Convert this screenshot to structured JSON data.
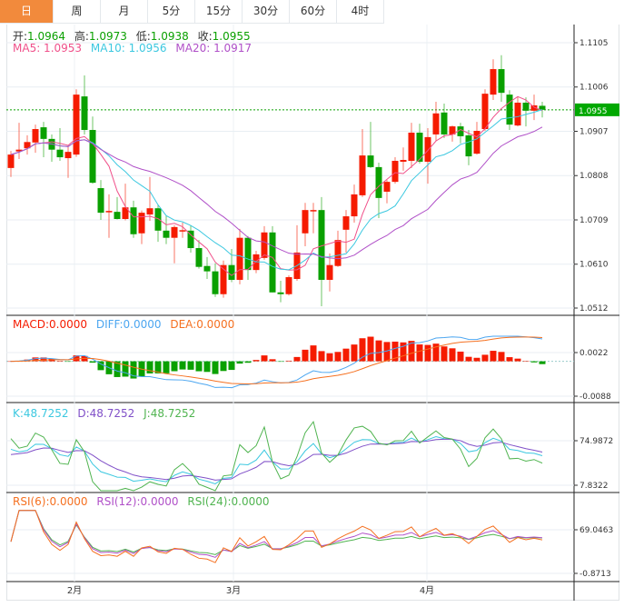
{
  "tabs": [
    {
      "label": "日",
      "active": true
    },
    {
      "label": "周"
    },
    {
      "label": "月"
    },
    {
      "label": "5分"
    },
    {
      "label": "15分"
    },
    {
      "label": "30分"
    },
    {
      "label": "60分"
    },
    {
      "label": "4时"
    }
  ],
  "quote": {
    "open_label": "开:",
    "open": "1.0964",
    "high_label": "高:",
    "high": "1.0973",
    "low_label": "低:",
    "low": "1.0938",
    "close_label": "收:",
    "close": "1.0955"
  },
  "ma_legend": {
    "ma5": "MA5: 1.0953",
    "ma10": "MA10: 1.0956",
    "ma20": "MA20: 1.0917"
  },
  "macd_legend": {
    "macd": "MACD:0.0000",
    "diff": "DIFF:0.0000",
    "dea": "DEA:0.0000"
  },
  "kdj_legend": {
    "k": "K:48.7252",
    "d": "D:48.7252",
    "j": "J:48.7252"
  },
  "rsi_legend": {
    "rsi6": "RSI(6):0.0000",
    "rsi12": "RSI(12):0.0000",
    "rsi24": "RSI(24):0.0000"
  },
  "last_price_label": "1.0955",
  "colors": {
    "up": "#f51b00",
    "down": "#0aa000",
    "ma5": "#f0508a",
    "ma10": "#3cc8e0",
    "ma20": "#b050c8",
    "diff": "#4ca6f0",
    "dea": "#f57020",
    "k": "#3cc8e0",
    "d": "#8050c8",
    "j": "#50b450",
    "rsi6": "#f57020",
    "rsi12": "#b050c8",
    "rsi24": "#50b450",
    "tab_active": "#f28a3c"
  },
  "chart_data": {
    "type": "candlestick",
    "title": "",
    "price_axis_ticks": [
      "1.1105",
      "1.1006",
      "1.0907",
      "1.0808",
      "1.0709",
      "1.0610",
      "1.0512"
    ],
    "price_range": [
      1.0512,
      1.1105
    ],
    "macd_axis_ticks": [
      "0.0022",
      "-0.0088"
    ],
    "kdj_axis_ticks": [
      "74.9872",
      "7.8322"
    ],
    "rsi_axis_ticks": [
      "69.0463",
      "-0.8713"
    ],
    "x_month_labels": [
      {
        "label": "2月",
        "index": 8
      },
      {
        "label": "3月",
        "index": 28
      },
      {
        "label": "4月",
        "index": 51
      }
    ],
    "ohlc": [
      [
        1.0825,
        1.0863,
        1.0805,
        1.0855
      ],
      [
        1.0862,
        1.0926,
        1.0845,
        1.0866
      ],
      [
        1.0869,
        1.0898,
        1.0855,
        1.0883
      ],
      [
        1.0882,
        1.0922,
        1.0859,
        1.0912
      ],
      [
        1.0916,
        1.0928,
        1.0849,
        1.089
      ],
      [
        1.089,
        1.09,
        1.0839,
        1.0866
      ],
      [
        1.0866,
        1.0914,
        1.0841,
        1.0849
      ],
      [
        1.0847,
        1.0876,
        1.0803,
        1.0861
      ],
      [
        1.0855,
        1.1001,
        1.085,
        1.0989
      ],
      [
        1.0985,
        1.1032,
        1.09,
        1.091
      ],
      [
        1.091,
        1.094,
        1.079,
        1.0792
      ],
      [
        1.078,
        1.0798,
        1.0709,
        1.0725
      ],
      [
        1.0727,
        1.0766,
        1.0669,
        1.0729
      ],
      [
        1.0727,
        1.076,
        1.071,
        1.0711
      ],
      [
        1.0711,
        1.079,
        1.0708,
        1.0737
      ],
      [
        1.0737,
        1.0752,
        1.0669,
        1.0677
      ],
      [
        1.0679,
        1.073,
        1.0655,
        1.0725
      ],
      [
        1.0721,
        1.0805,
        1.0707,
        1.0735
      ],
      [
        1.0735,
        1.0743,
        1.066,
        1.0685
      ],
      [
        1.0685,
        1.0719,
        1.0655,
        1.0669
      ],
      [
        1.0669,
        1.0697,
        1.0612,
        1.0693
      ],
      [
        1.0684,
        1.0703,
        1.0669,
        1.0686
      ],
      [
        1.0685,
        1.0697,
        1.0636,
        1.0646
      ],
      [
        1.0646,
        1.0664,
        1.06,
        1.0604
      ],
      [
        1.0606,
        1.0626,
        1.0577,
        1.0594
      ],
      [
        1.0594,
        1.0612,
        1.0537,
        1.0543
      ],
      [
        1.0543,
        1.0618,
        1.0535,
        1.0608
      ],
      [
        1.0608,
        1.0644,
        1.057,
        1.0575
      ],
      [
        1.0575,
        1.0689,
        1.0565,
        1.0669
      ],
      [
        1.0669,
        1.0673,
        1.0575,
        1.0597
      ],
      [
        1.0597,
        1.064,
        1.059,
        1.0632
      ],
      [
        1.0624,
        1.0695,
        1.062,
        1.0681
      ],
      [
        1.0681,
        1.0695,
        1.0547,
        1.0547
      ],
      [
        1.0547,
        1.0573,
        1.0525,
        1.0543
      ],
      [
        1.0543,
        1.0585,
        1.054,
        1.0581
      ],
      [
        1.0577,
        1.0697,
        1.0573,
        1.0636
      ],
      [
        1.0679,
        1.0747,
        1.065,
        1.0731
      ],
      [
        1.0729,
        1.0747,
        1.0679,
        1.0731
      ],
      [
        1.0731,
        1.076,
        1.0516,
        1.0575
      ],
      [
        1.0575,
        1.0634,
        1.0549,
        1.0608
      ],
      [
        1.0606,
        1.0685,
        1.0604,
        1.0664
      ],
      [
        1.0687,
        1.0731,
        1.0636,
        1.0717
      ],
      [
        1.0717,
        1.0788,
        1.0703,
        1.0766
      ],
      [
        1.0764,
        1.0912,
        1.076,
        1.0853
      ],
      [
        1.0853,
        1.0928,
        1.0825,
        1.0827
      ],
      [
        1.0827,
        1.0837,
        1.0713,
        1.0758
      ],
      [
        1.0772,
        1.0798,
        1.0746,
        1.0794
      ],
      [
        1.0794,
        1.0849,
        1.079,
        1.0841
      ],
      [
        1.0839,
        1.0871,
        1.0819,
        1.0843
      ],
      [
        1.0841,
        1.0926,
        1.0825,
        1.0904
      ],
      [
        1.0904,
        1.0924,
        1.0835,
        1.0839
      ],
      [
        1.0839,
        1.0914,
        1.079,
        1.0894
      ],
      [
        1.09,
        1.0973,
        1.0886,
        1.0947
      ],
      [
        1.0949,
        1.0969,
        1.0892,
        1.09
      ],
      [
        1.09,
        1.092,
        1.0884,
        1.0918
      ],
      [
        1.0918,
        1.0926,
        1.088,
        1.0896
      ],
      [
        1.0898,
        1.091,
        1.0831,
        1.0851
      ],
      [
        1.0857,
        1.0928,
        1.0855,
        1.0908
      ],
      [
        1.0912,
        1.1001,
        1.0908,
        1.0991
      ],
      [
        1.0989,
        1.1068,
        1.0977,
        1.1046
      ],
      [
        1.1046,
        1.1077,
        1.0973,
        1.0993
      ],
      [
        1.0989,
        1.0999,
        1.091,
        1.0922
      ],
      [
        1.092,
        1.0985,
        1.0918,
        1.0971
      ],
      [
        1.0971,
        1.0983,
        1.0918,
        1.0953
      ],
      [
        1.0953,
        1.0989,
        1.0932,
        1.0965
      ],
      [
        1.0964,
        1.0973,
        1.0938,
        1.0955
      ]
    ],
    "indicators": [
      "MA5",
      "MA10",
      "MA20",
      "MACD",
      "KDJ",
      "RSI"
    ],
    "grid": true
  }
}
